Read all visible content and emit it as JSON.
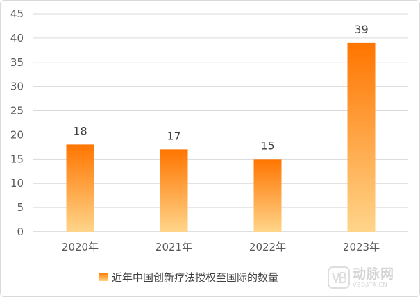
{
  "chart_data": {
    "type": "bar",
    "categories": [
      "2020年",
      "2021年",
      "2022年",
      "2023年"
    ],
    "series": [
      {
        "name": "近年中国创新疗法授权至国际的数量",
        "values": [
          18,
          17,
          15,
          39
        ]
      }
    ],
    "ylim": [
      0,
      45
    ],
    "yticks": [
      0,
      5,
      10,
      15,
      20,
      25,
      30,
      35,
      40,
      45
    ],
    "grid": true,
    "legend": "bottom",
    "colors": {
      "bar_top": "#ff7500",
      "bar_bottom": "#ffd58a",
      "grid": "#d9d9d9",
      "axis": "#bfbfbf"
    }
  },
  "legend": {
    "label": "近年中国创新疗法授权至国际的数量"
  },
  "watermark": {
    "cn": "动脉网",
    "en": "VBDATA.CN"
  }
}
